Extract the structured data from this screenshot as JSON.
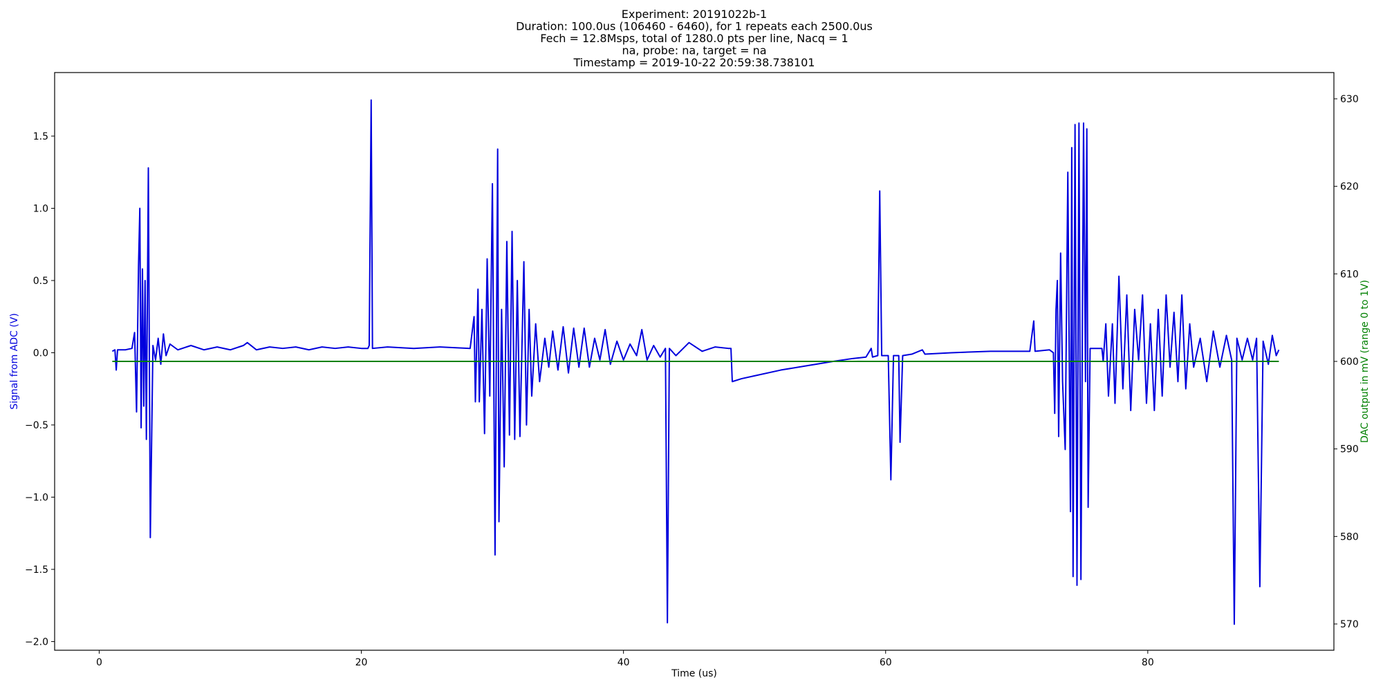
{
  "chart_data": {
    "type": "line",
    "title": [
      "Experiment: 20191022b-1",
      "Duration: 100.0us (106460 - 6460), for 1 repeats each 2500.0us",
      "Fech = 12.8Msps, total of 1280.0 pts per line, Nacq = 1",
      "na, probe: na, target = na",
      "Timestamp = 2019-10-22 20:59:38.738101"
    ],
    "xlabel": "Time (us)",
    "ylabel": "Signal from ADC (V)",
    "y2label": "DAC output in mV (range 0 to 1V)",
    "grid": false,
    "xlim": [
      -3.4,
      94.2
    ],
    "ylim": [
      -2.06,
      1.94
    ],
    "y2lim": [
      567,
      633
    ],
    "xticks": [
      0,
      20,
      40,
      60,
      80
    ],
    "yticks": [
      {
        "value": -2,
        "label": "−2.0"
      },
      {
        "value": -1.5,
        "label": "−1.5"
      },
      {
        "value": -1,
        "label": "−1.0"
      },
      {
        "value": -0.5,
        "label": "−0.5"
      },
      {
        "value": 0,
        "label": "0.0"
      },
      {
        "value": 0.5,
        "label": "0.5"
      },
      {
        "value": 1,
        "label": "1.0"
      },
      {
        "value": 1.5,
        "label": "1.5"
      }
    ],
    "y2ticks": [
      570,
      580,
      590,
      600,
      610,
      620,
      630
    ],
    "series": [
      {
        "color": "#0000dd",
        "axis": "y",
        "x": [
          1.0,
          1.2,
          1.3,
          1.4,
          2.0,
          2.5,
          2.7,
          2.85,
          3.0,
          3.1,
          3.2,
          3.3,
          3.4,
          3.5,
          3.6,
          3.75,
          3.9,
          4.1,
          4.3,
          4.5,
          4.7,
          4.9,
          5.1,
          5.4,
          6,
          7,
          8,
          9,
          10,
          11,
          11.3,
          12,
          13,
          14,
          15,
          16,
          17,
          18,
          19,
          20,
          20.5,
          20.6,
          20.75,
          20.85,
          22,
          24,
          26,
          28.3,
          28.6,
          28.7,
          28.9,
          29.0,
          29.2,
          29.4,
          29.6,
          29.8,
          30.0,
          30.2,
          30.4,
          30.5,
          30.7,
          30.9,
          31.1,
          31.3,
          31.5,
          31.7,
          31.9,
          32.1,
          32.4,
          32.6,
          32.8,
          33.0,
          33.3,
          33.6,
          34.0,
          34.3,
          34.6,
          35.0,
          35.4,
          35.8,
          36.2,
          36.6,
          37.0,
          37.4,
          37.8,
          38.2,
          38.6,
          39.0,
          39.5,
          40.0,
          40.5,
          41.0,
          41.4,
          41.8,
          42.3,
          42.8,
          43.2,
          43.35,
          43.5,
          44,
          45,
          46,
          47,
          48.0,
          48.2,
          48.3,
          49,
          50,
          52,
          54,
          56,
          57.5,
          58.5,
          58.9,
          59.0,
          59.4,
          59.55,
          59.7,
          60.2,
          60.4,
          60.6,
          61.0,
          61.1,
          61.3,
          62,
          62.8,
          63,
          65,
          68,
          71.0,
          71.3,
          71.4,
          72.5,
          72.8,
          72.9,
          73.0,
          73.1,
          73.2,
          73.35,
          73.5,
          73.7,
          73.9,
          74.1,
          74.2,
          74.3,
          74.45,
          74.6,
          74.75,
          74.9,
          75.1,
          75.25,
          75.35,
          75.45,
          75.6,
          76.5,
          76.6,
          76.8,
          77.0,
          77.3,
          77.5,
          77.8,
          78.1,
          78.4,
          78.7,
          79.0,
          79.3,
          79.6,
          79.9,
          80.2,
          80.5,
          80.8,
          81.1,
          81.4,
          81.7,
          82.0,
          82.3,
          82.6,
          82.9,
          83.2,
          83.5,
          84.0,
          84.5,
          85.0,
          85.5,
          86.0,
          86.4,
          86.6,
          86.8,
          87.2,
          87.6,
          88.0,
          88.3,
          88.55,
          88.8,
          89.2,
          89.5,
          89.8,
          90.0
        ],
        "values": [
          0.01,
          0.02,
          -0.12,
          0.02,
          0.02,
          0.03,
          0.14,
          -0.41,
          0.6,
          1.0,
          -0.52,
          0.58,
          -0.37,
          0.5,
          -0.6,
          1.28,
          -1.28,
          0.05,
          -0.05,
          0.1,
          -0.08,
          0.13,
          -0.02,
          0.06,
          0.02,
          0.05,
          0.02,
          0.04,
          0.02,
          0.05,
          0.07,
          0.02,
          0.04,
          0.03,
          0.04,
          0.02,
          0.04,
          0.03,
          0.04,
          0.03,
          0.03,
          0.05,
          1.75,
          0.03,
          0.04,
          0.03,
          0.04,
          0.03,
          0.25,
          -0.34,
          0.44,
          -0.34,
          0.3,
          -0.56,
          0.65,
          -0.3,
          1.17,
          -1.4,
          1.41,
          -1.17,
          0.3,
          -0.79,
          0.77,
          -0.57,
          0.84,
          -0.6,
          0.5,
          -0.58,
          0.63,
          -0.5,
          0.3,
          -0.3,
          0.2,
          -0.2,
          0.1,
          -0.1,
          0.15,
          -0.12,
          0.18,
          -0.14,
          0.17,
          -0.1,
          0.17,
          -0.1,
          0.1,
          -0.05,
          0.16,
          -0.08,
          0.08,
          -0.05,
          0.06,
          -0.02,
          0.16,
          -0.05,
          0.05,
          -0.03,
          0.03,
          -1.87,
          0.03,
          -0.02,
          0.07,
          0.01,
          0.04,
          0.03,
          0.03,
          -0.2,
          -0.18,
          -0.16,
          -0.12,
          -0.09,
          -0.06,
          -0.04,
          -0.03,
          0.03,
          -0.03,
          -0.02,
          1.12,
          -0.02,
          -0.02,
          -0.88,
          -0.02,
          -0.02,
          -0.62,
          -0.02,
          -0.01,
          0.02,
          -0.01,
          0.0,
          0.01,
          0.01,
          0.22,
          0.01,
          0.02,
          0.0,
          -0.42,
          0.3,
          0.5,
          -0.58,
          0.69,
          -0.2,
          -0.67,
          1.25,
          -1.1,
          1.42,
          -1.55,
          1.58,
          -1.61,
          1.59,
          -1.57,
          1.59,
          -0.2,
          1.55,
          -1.07,
          0.03,
          0.03,
          -0.06,
          0.2,
          -0.3,
          0.2,
          -0.35,
          0.53,
          -0.25,
          0.4,
          -0.4,
          0.3,
          -0.05,
          0.4,
          -0.35,
          0.2,
          -0.4,
          0.3,
          -0.3,
          0.4,
          -0.1,
          0.28,
          -0.2,
          0.4,
          -0.25,
          0.2,
          -0.1,
          0.1,
          -0.2,
          0.15,
          -0.1,
          0.12,
          -0.05,
          -1.88,
          0.1,
          -0.05,
          0.1,
          -0.05,
          0.1,
          -1.62,
          0.08,
          -0.08,
          0.12,
          -0.02,
          0.02
        ]
      },
      {
        "color": "#008000",
        "axis": "y2",
        "x": [
          1.0,
          90.0
        ],
        "values": [
          600,
          600
        ]
      }
    ]
  }
}
